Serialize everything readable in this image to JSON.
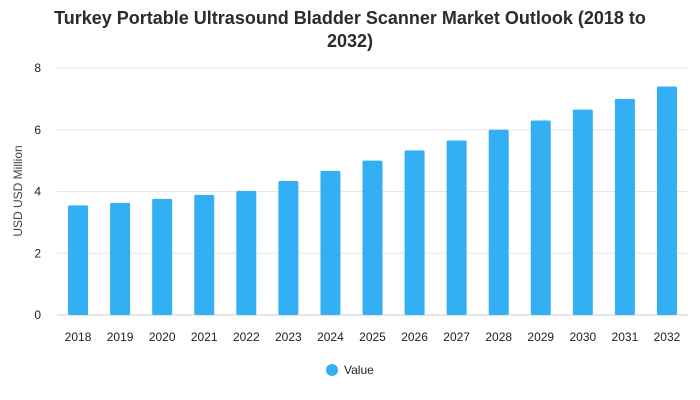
{
  "colors": {
    "bar": "#33b0f4",
    "grid": "#e6e6e6",
    "text": "#222222"
  },
  "chart_data": {
    "type": "bar",
    "title_lines": [
      "Turkey Portable Ultrasound Bladder Scanner Market Outlook (2018 to",
      "2032)"
    ],
    "xlabel": "",
    "ylabel": "USD USD Million",
    "ylim": [
      0,
      8
    ],
    "yticks": [
      0,
      2,
      4,
      6,
      8
    ],
    "grid": true,
    "legend_position": "bottom-center",
    "categories": [
      "2018",
      "2019",
      "2020",
      "2021",
      "2022",
      "2023",
      "2024",
      "2025",
      "2026",
      "2027",
      "2028",
      "2029",
      "2030",
      "2031",
      "2032"
    ],
    "series": [
      {
        "name": "Value",
        "values": [
          3.55,
          3.63,
          3.76,
          3.89,
          4.02,
          4.34,
          4.67,
          5.0,
          5.33,
          5.65,
          6.0,
          6.3,
          6.65,
          7.0,
          7.4
        ]
      }
    ]
  }
}
